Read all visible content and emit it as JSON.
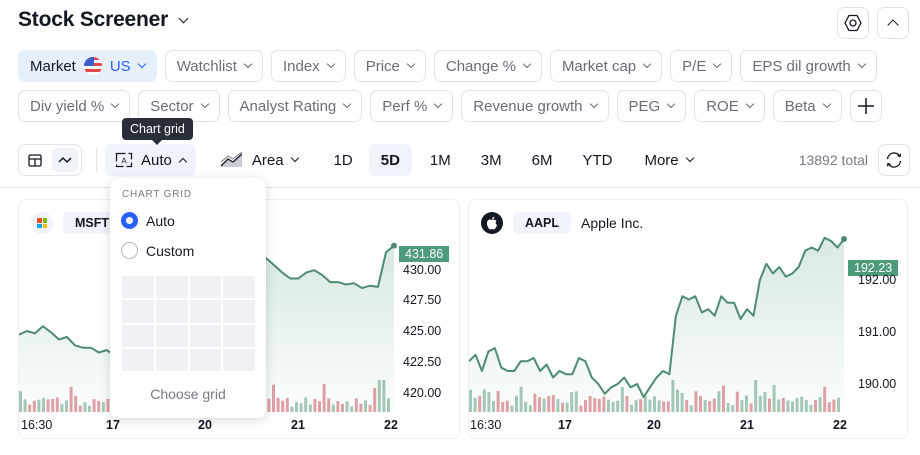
{
  "header": {
    "title": "Stock Screener",
    "settings_icon": "hexagon-settings-icon",
    "collapse_icon": "chevron-up-icon"
  },
  "filters": {
    "row1": [
      {
        "label": "Market",
        "value": "US",
        "icon": "us-flag-icon",
        "active": true
      },
      {
        "label": "Watchlist"
      },
      {
        "label": "Index"
      },
      {
        "label": "Price"
      },
      {
        "label": "Change %"
      },
      {
        "label": "Market cap"
      },
      {
        "label": "P/E"
      },
      {
        "label": "EPS dil growth"
      }
    ],
    "row2": [
      {
        "label": "Div yield %"
      },
      {
        "label": "Sector"
      },
      {
        "label": "Analyst Rating"
      },
      {
        "label": "Perf %"
      },
      {
        "label": "Revenue growth"
      },
      {
        "label": "PEG"
      },
      {
        "label": "ROE"
      },
      {
        "label": "Beta"
      }
    ],
    "add_icon": "plus-icon"
  },
  "toolbar": {
    "view_table_icon": "table-icon",
    "view_chart_icon": "line-chart-icon",
    "grid_label": "Auto",
    "grid_tooltip": "Chart grid",
    "chart_type_label": "Area",
    "ranges": [
      "1D",
      "5D",
      "1M",
      "3M",
      "6M",
      "YTD"
    ],
    "active_range": "5D",
    "more_label": "More",
    "total": "13892 total",
    "refresh_icon": "refresh-icon"
  },
  "dropdown": {
    "heading": "CHART GRID",
    "options": [
      {
        "label": "Auto",
        "selected": true
      },
      {
        "label": "Custom",
        "selected": false
      }
    ],
    "footer": "Choose grid"
  },
  "colors": {
    "accent": "#2962ff",
    "line": "#4e8c72",
    "price_tag": "#4e9b7a",
    "vol_up": "#a6c9b8",
    "vol_down": "#e3a0a6"
  },
  "cards": [
    {
      "ticker": "MSFT",
      "name": "",
      "logo": "microsoft-logo-icon",
      "last_price": "431.86",
      "y_ticks": [
        "430.00",
        "427.50",
        "425.00",
        "422.50",
        "420.00"
      ],
      "x_ticks": [
        {
          "label": "16:30",
          "bold": false
        },
        {
          "label": "17",
          "bold": true
        },
        {
          "label": "20",
          "bold": true
        },
        {
          "label": "21",
          "bold": true
        },
        {
          "label": "22",
          "bold": true
        }
      ]
    },
    {
      "ticker": "AAPL",
      "name": "Apple Inc.",
      "logo": "apple-logo-icon",
      "last_price": "192.23",
      "y_ticks": [
        "192.00",
        "191.00",
        "190.00"
      ],
      "x_ticks": [
        {
          "label": "16:30",
          "bold": false
        },
        {
          "label": "17",
          "bold": true
        },
        {
          "label": "20",
          "bold": true
        },
        {
          "label": "21",
          "bold": true
        },
        {
          "label": "22",
          "bold": true
        }
      ]
    }
  ],
  "chart_data": [
    {
      "type": "area",
      "title": "MSFT",
      "xlabel": "",
      "ylabel": "",
      "x_ticks": [
        "16:30",
        "17",
        "20",
        "21",
        "22"
      ],
      "ylim": [
        419.0,
        432.5
      ],
      "y_ticks": [
        420.0,
        422.5,
        425.0,
        427.5,
        430.0
      ],
      "last_value": 431.86,
      "series": [
        {
          "name": "MSFT price",
          "values": [
            424.4,
            424.7,
            424.5,
            425.1,
            424.6,
            424.0,
            424.2,
            423.5,
            423.3,
            423.3,
            422.9,
            423.1,
            422.6,
            422.0,
            421.7,
            422.2,
            423.0,
            424.0,
            424.2,
            424.8,
            425.1,
            424.8,
            424.9,
            426.2,
            426.8,
            428.1,
            428.6,
            429.4,
            428.8,
            429.0,
            429.8,
            430.8,
            430.2,
            429.6,
            429.1,
            429.1,
            429.6,
            429.8,
            429.4,
            428.8,
            428.8,
            428.6,
            428.7,
            428.3,
            428.5,
            428.4,
            431.3,
            431.86
          ]
        }
      ],
      "grid": false,
      "volume": true
    },
    {
      "type": "area",
      "title": "AAPL",
      "xlabel": "",
      "ylabel": "",
      "x_ticks": [
        "16:30",
        "17",
        "20",
        "21",
        "22"
      ],
      "ylim": [
        189.6,
        192.4
      ],
      "y_ticks": [
        190.0,
        191.0,
        192.0
      ],
      "last_value": 192.23,
      "series": [
        {
          "name": "AAPL price",
          "values": [
            190.35,
            190.45,
            190.2,
            190.5,
            190.55,
            190.25,
            190.2,
            190.2,
            190.35,
            190.35,
            190.4,
            190.2,
            190.3,
            190.1,
            190.2,
            190.15,
            190.15,
            190.4,
            190.35,
            190.1,
            190.0,
            189.85,
            189.95,
            190.0,
            190.1,
            189.95,
            190.0,
            189.8,
            189.95,
            190.1,
            190.2,
            190.15,
            191.05,
            191.35,
            191.3,
            191.35,
            191.1,
            191.15,
            191.05,
            191.35,
            191.25,
            191.25,
            191.0,
            191.15,
            191.05,
            191.6,
            191.85,
            191.7,
            191.8,
            191.65,
            191.7,
            191.8,
            192.05,
            192.1,
            192.05,
            192.25,
            192.2,
            192.1,
            192.23
          ]
        }
      ],
      "grid": false,
      "volume": true
    }
  ]
}
